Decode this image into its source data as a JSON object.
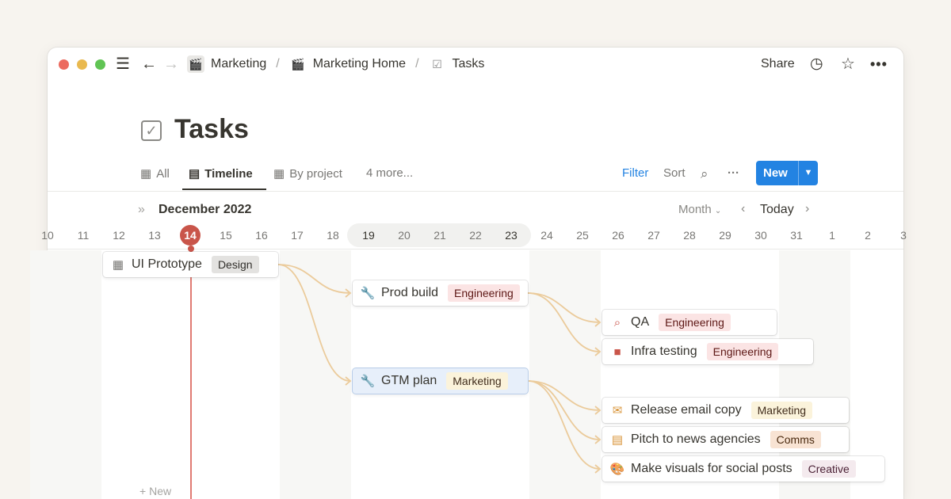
{
  "breadcrumb": [
    {
      "label": "Marketing",
      "icon": "clapper-icon"
    },
    {
      "label": "Marketing Home",
      "icon": "clapper-icon"
    },
    {
      "label": "Tasks",
      "icon": "checkbox-icon"
    }
  ],
  "separator": "/",
  "topbar": {
    "share": "Share"
  },
  "page": {
    "title": "Tasks"
  },
  "views": [
    {
      "label": "All"
    },
    {
      "label": "Timeline"
    },
    {
      "label": "By project"
    },
    {
      "label": "4 more..."
    }
  ],
  "toolbar": {
    "filter": "Filter",
    "sort": "Sort",
    "new": "New"
  },
  "timeline": {
    "month": "December 2022",
    "scale": "Month",
    "today": "Today",
    "today_day": "14",
    "days": [
      "10",
      "11",
      "12",
      "13",
      "14",
      "15",
      "16",
      "17",
      "18",
      "19",
      "20",
      "21",
      "22",
      "23",
      "24",
      "25",
      "26",
      "27",
      "28",
      "29",
      "30",
      "31",
      "1",
      "2",
      "3"
    ],
    "new_label": "New",
    "colors": {
      "today": "#c9554a",
      "connector": "#ebcb9b",
      "accent": "#2383e2"
    }
  },
  "tasks": [
    {
      "name": "UI Prototype",
      "tag": "Design",
      "icon": "grid-icon",
      "tag_bg": "#e3e2e0",
      "tag_fg": "#32302c"
    },
    {
      "name": "Prod build",
      "tag": "Engineering",
      "icon": "wrench-icon",
      "tag_bg": "#fbe4e4",
      "tag_fg": "#5d1715"
    },
    {
      "name": "QA",
      "tag": "Engineering",
      "icon": "magnifier-icon",
      "tag_bg": "#fbe4e4",
      "tag_fg": "#5d1715"
    },
    {
      "name": "Infra testing",
      "tag": "Engineering",
      "icon": "box-icon",
      "tag_bg": "#fbe4e4",
      "tag_fg": "#5d1715"
    },
    {
      "name": "GTM plan",
      "tag": "Marketing",
      "icon": "wrench-icon",
      "tag_bg": "#fbf3db",
      "tag_fg": "#402c1b"
    },
    {
      "name": "Release email copy",
      "tag": "Marketing",
      "icon": "envelope-icon",
      "tag_bg": "#fbf3db",
      "tag_fg": "#402c1b"
    },
    {
      "name": "Pitch to news agencies",
      "tag": "Comms",
      "icon": "newspaper-icon",
      "tag_bg": "#f8e3d3",
      "tag_fg": "#49290e"
    },
    {
      "name": "Make visuals for social posts",
      "tag": "Creative",
      "icon": "palette-icon",
      "tag_bg": "#f4eaee",
      "tag_fg": "#4c2337"
    }
  ]
}
